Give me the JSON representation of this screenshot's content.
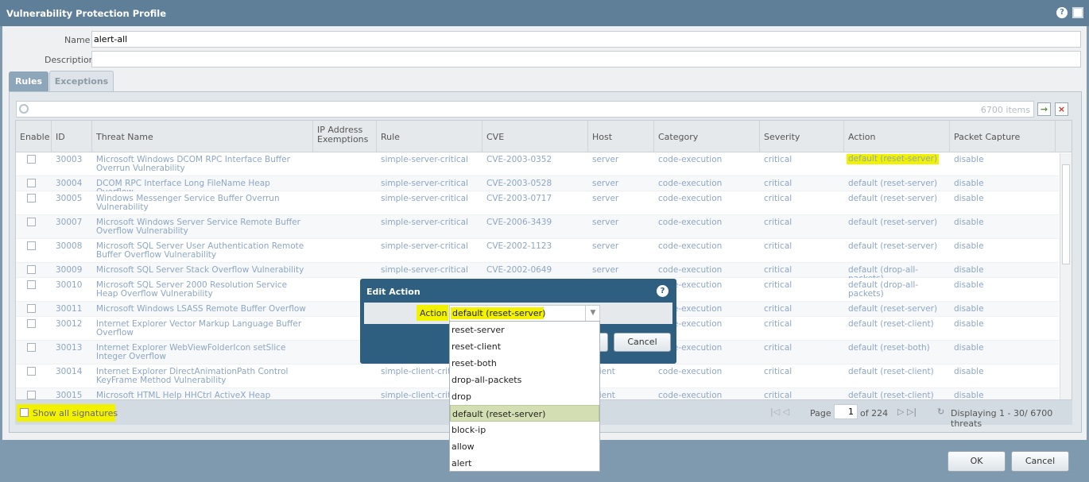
{
  "window": {
    "title": "Vulnerability Protection Profile"
  },
  "form": {
    "name_label": "Name",
    "name_value": "alert-all",
    "description_label": "Description"
  },
  "tabs": [
    "Rules",
    "Exceptions"
  ],
  "toolbar": {
    "items_count": "6700 items"
  },
  "table": {
    "columns": [
      "Enable",
      "ID",
      "Threat Name",
      "IP Address Exemptions",
      "Rule",
      "CVE",
      "Host",
      "Category",
      "Severity",
      "Action",
      "Packet Capture"
    ],
    "rows": [
      {
        "id": 30003,
        "threat": "Microsoft Windows DCOM RPC Interface Buffer Overrun Vulnerability",
        "rule": "simple-server-critical",
        "cve": "CVE-2003-0352",
        "host": "server",
        "category": "code-execution",
        "severity": "critical",
        "action": "default (reset-server)",
        "capture": "disable"
      },
      {
        "id": 30004,
        "threat": "DCOM RPC Interface Long FileName Heap Overflow",
        "rule": "simple-server-critical",
        "cve": "CVE-2003-0528",
        "host": "server",
        "category": "code-execution",
        "severity": "critical",
        "action": "default (reset-server)",
        "capture": "disable"
      },
      {
        "id": 30005,
        "threat": "Windows Messenger Service Buffer Overrun Vulnerability",
        "rule": "simple-server-critical",
        "cve": "CVE-2003-0717",
        "host": "server",
        "category": "code-execution",
        "severity": "critical",
        "action": "default (reset-server)",
        "capture": "disable"
      },
      {
        "id": 30007,
        "threat": "Microsoft Windows Server Service Remote Buffer Overflow Vulnerability",
        "rule": "simple-server-critical",
        "cve": "CVE-2006-3439",
        "host": "server",
        "category": "code-execution",
        "severity": "critical",
        "action": "default (reset-server)",
        "capture": "disable"
      },
      {
        "id": 30008,
        "threat": "Microsoft SQL Server User Authentication Remote Buffer Overflow Vulnerability",
        "rule": "simple-server-critical",
        "cve": "CVE-2002-1123",
        "host": "server",
        "category": "code-execution",
        "severity": "critical",
        "action": "default (reset-server)",
        "capture": "disable"
      },
      {
        "id": 30009,
        "threat": "Microsoft SQL Server Stack Overflow Vulnerability",
        "rule": "simple-server-critical",
        "cve": "CVE-2002-0649",
        "host": "server",
        "category": "code-execution",
        "severity": "critical",
        "action": "default (drop-all-packets)",
        "capture": "disable"
      },
      {
        "id": 30010,
        "threat": "Microsoft SQL Server 2000 Resolution Service Heap Overflow Vulnerability",
        "category": "code-execution",
        "severity": "critical",
        "action": "default (drop-all-packets)",
        "capture": "disable"
      },
      {
        "id": 30011,
        "threat": "Microsoft Windows LSASS Remote Buffer Overflow",
        "category": "code-execution",
        "severity": "critical",
        "action": "default (reset-server)",
        "capture": "disable"
      },
      {
        "id": 30012,
        "threat": "Internet Explorer Vector Markup Language Buffer Overflow",
        "category": "code-execution",
        "severity": "critical",
        "action": "default (reset-client)",
        "capture": "disable"
      },
      {
        "id": 30013,
        "threat": "Internet Explorer WebViewFolderIcon setSlice Integer Overflow",
        "category": "code-execution",
        "severity": "critical",
        "action": "default (reset-both)",
        "capture": "disable"
      },
      {
        "id": 30014,
        "threat": "Internet Explorer DirectAnimationPath Control KeyFrame Method Vulnerability",
        "rule": "simple-client-critical",
        "host": "client",
        "category": "code-execution",
        "severity": "critical",
        "action": "default (reset-client)",
        "capture": "disable"
      },
      {
        "id": 30015,
        "threat": "Microsoft HTML Help HHCtrl ActiveX Heap Overflow",
        "rule": "simple-client-critical",
        "host": "client",
        "category": "code-execution",
        "severity": "critical",
        "action": "default (reset-client)",
        "capture": "disable"
      }
    ]
  },
  "footer": {
    "show_all": "Show all signatures",
    "page_label": "Page",
    "page_value": "1",
    "page_of": "of 224",
    "displaying": "Displaying 1 - 30/ 6700 threats"
  },
  "dialog": {
    "title": "Edit Action",
    "action_label": "Action",
    "action_value": "default (reset-server)",
    "cancel": "Cancel",
    "options": [
      "reset-server",
      "reset-client",
      "reset-both",
      "drop-all-packets",
      "drop",
      "default (reset-server)",
      "block-ip",
      "allow",
      "alert"
    ],
    "selected": 5
  },
  "buttons": {
    "ok": "OK",
    "cancel": "Cancel"
  }
}
